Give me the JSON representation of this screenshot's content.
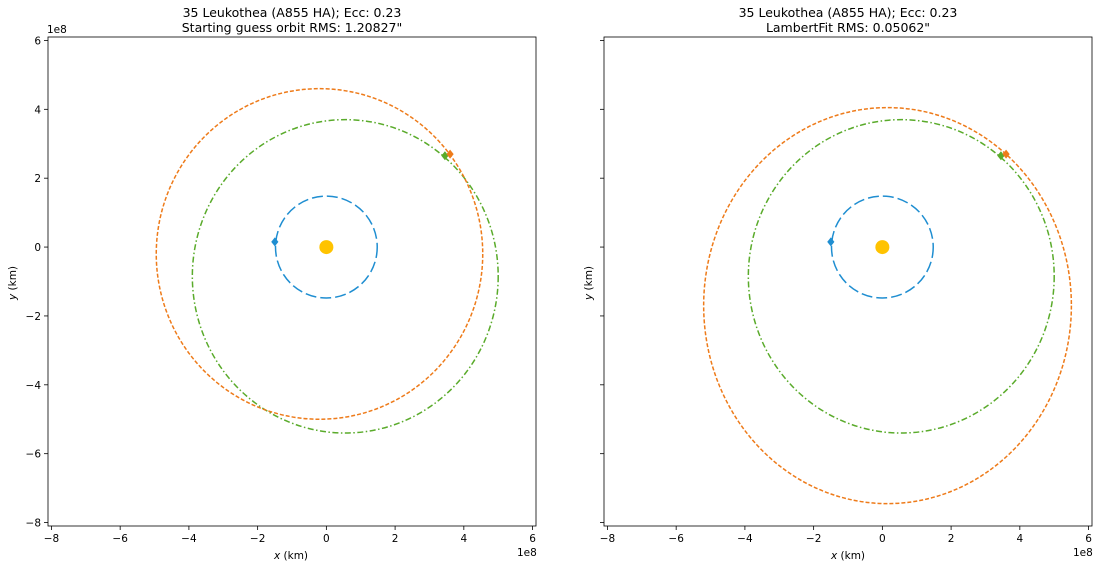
{
  "figure": {
    "panels": [
      {
        "title_line1": "35 Leukothea (A855 HA); Ecc: 0.23",
        "title_line2": "Starting guess orbit RMS: 1.20827\"",
        "xlabel_var": "x",
        "xlabel_unit": " (km)",
        "ylabel_var": "y",
        "ylabel_unit": " (km)",
        "x_offset_text": "1e8",
        "y_offset_text": "1e8",
        "show_y_tick_labels": true
      },
      {
        "title_line1": "35 Leukothea (A855 HA); Ecc: 0.23",
        "title_line2": "LambertFit RMS: 0.05062\"",
        "xlabel_var": "x",
        "xlabel_unit": " (km)",
        "ylabel_var": "y",
        "ylabel_unit": " (km)",
        "x_offset_text": "1e8",
        "y_offset_text": "",
        "show_y_tick_labels": false
      }
    ]
  },
  "chart_data": [
    {
      "type": "line",
      "title": "35 Leukothea (A855 HA); Ecc: 0.23 / Starting guess orbit RMS: 1.20827\"",
      "xlabel": "x (km)",
      "ylabel": "y (km)",
      "xlim": [
        -8.1,
        6.1
      ],
      "ylim": [
        -8.1,
        6.1
      ],
      "units_scale": "1e8",
      "xticks": [
        -8,
        -6,
        -4,
        -2,
        0,
        2,
        4,
        6
      ],
      "yticks": [
        -8,
        -6,
        -4,
        -2,
        0,
        2,
        4,
        6
      ],
      "tick_labels": [
        "−8",
        "−6",
        "−4",
        "−2",
        "0",
        "2",
        "4",
        "6"
      ],
      "grid": false,
      "sun": {
        "x": 0,
        "y": 0,
        "color": "#ffc300"
      },
      "orbits": [
        {
          "cx": 0.0,
          "cy": 0.0,
          "rx": 1.48,
          "ry": 1.48,
          "color": "#1f8ed1",
          "dash": "long"
        },
        {
          "cx": 0.55,
          "cy": -0.85,
          "rx": 4.45,
          "ry": 4.55,
          "color": "#5aab2b",
          "dash": "dashdot"
        },
        {
          "cx": -0.2,
          "cy": -0.2,
          "rx": 4.75,
          "ry": 4.8,
          "color": "#ee7b1a",
          "dash": "short"
        }
      ],
      "markers": [
        {
          "x": -1.5,
          "y": 0.15,
          "color": "#1f8ed1"
        },
        {
          "x": 3.45,
          "y": 2.65,
          "color": "#5aab2b"
        },
        {
          "x": 3.6,
          "y": 2.7,
          "color": "#ee7b1a"
        }
      ]
    },
    {
      "type": "line",
      "title": "35 Leukothea (A855 HA); Ecc: 0.23 / LambertFit RMS: 0.05062\"",
      "xlabel": "x (km)",
      "ylabel": "y (km)",
      "xlim": [
        -8.1,
        6.1
      ],
      "ylim": [
        -8.1,
        6.1
      ],
      "units_scale": "1e8",
      "xticks": [
        -8,
        -6,
        -4,
        -2,
        0,
        2,
        4,
        6
      ],
      "yticks": [
        -8,
        -6,
        -4,
        -2,
        0,
        2,
        4,
        6
      ],
      "tick_labels": [
        "−8",
        "−6",
        "−4",
        "−2",
        "0",
        "2",
        "4",
        "6"
      ],
      "grid": false,
      "sun": {
        "x": 0,
        "y": 0,
        "color": "#ffc300"
      },
      "orbits": [
        {
          "cx": 0.0,
          "cy": 0.0,
          "rx": 1.48,
          "ry": 1.48,
          "color": "#1f8ed1",
          "dash": "long"
        },
        {
          "cx": 0.55,
          "cy": -0.85,
          "rx": 4.45,
          "ry": 4.55,
          "color": "#5aab2b",
          "dash": "dashdot"
        },
        {
          "cx": 0.15,
          "cy": -1.7,
          "rx": 5.35,
          "ry": 5.75,
          "color": "#ee7b1a",
          "dash": "short"
        }
      ],
      "markers": [
        {
          "x": -1.5,
          "y": 0.15,
          "color": "#1f8ed1"
        },
        {
          "x": 3.45,
          "y": 2.65,
          "color": "#5aab2b"
        },
        {
          "x": 3.6,
          "y": 2.7,
          "color": "#ee7b1a"
        }
      ]
    }
  ]
}
